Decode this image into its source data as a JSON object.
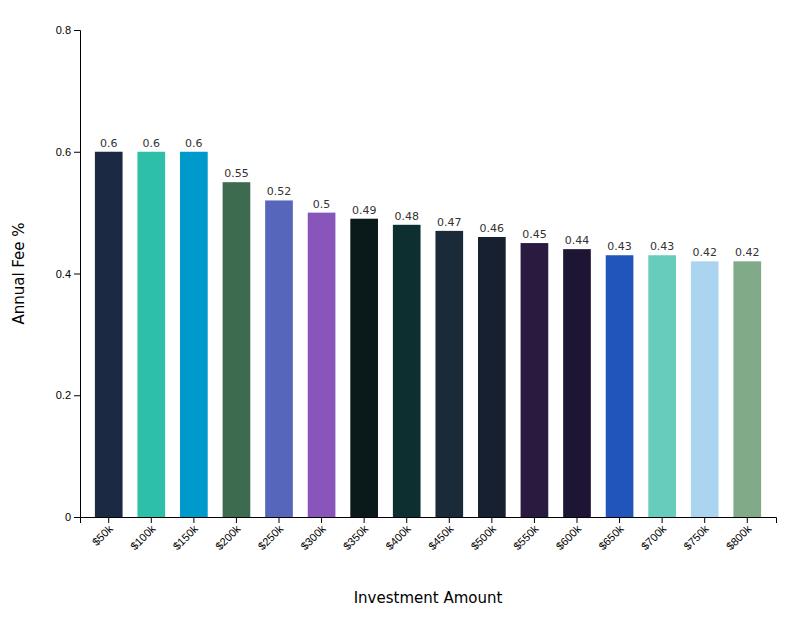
{
  "chart_data": {
    "type": "bar",
    "categories": [
      "$50k",
      "$100k",
      "$150k",
      "$200k",
      "$250k",
      "$300k",
      "$350k",
      "$400k",
      "$450k",
      "$500k",
      "$550k",
      "$600k",
      "$650k",
      "$700k",
      "$750k",
      "$800k"
    ],
    "values": [
      0.6,
      0.6,
      0.6,
      0.55,
      0.52,
      0.5,
      0.49,
      0.48,
      0.47,
      0.46,
      0.45,
      0.44,
      0.43,
      0.43,
      0.42,
      0.42
    ],
    "colors": [
      "#1b2a42",
      "#2dbfa8",
      "#0099cc",
      "#3d6b4f",
      "#5566bb",
      "#8855bb",
      "#0a1a1a",
      "#0d2f2f",
      "#1a2a38",
      "#162030",
      "#2a1a40",
      "#1e1535",
      "#2255bb",
      "#66ccbb",
      "#aad4f0",
      "#80aa88"
    ],
    "xlabel": "Investment Amount",
    "ylabel": "Annual Fee %",
    "ylim": [
      0,
      0.8
    ],
    "yticks": [
      0,
      0.2,
      0.4,
      0.6,
      0.8
    ],
    "data_labels": true,
    "grid": false
  }
}
